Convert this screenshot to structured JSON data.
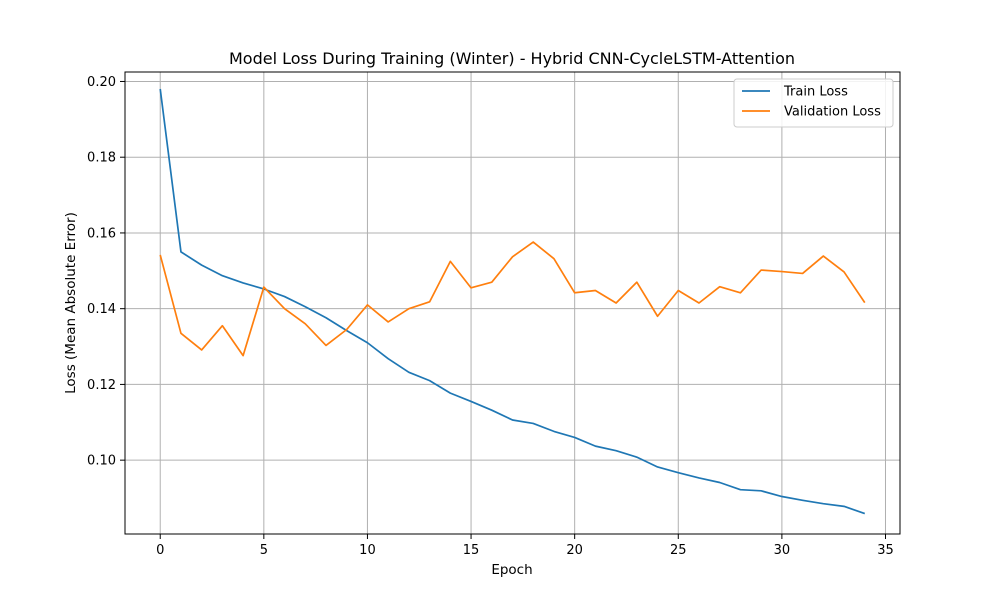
{
  "chart_data": {
    "type": "line",
    "title": "Model Loss During Training (Winter) - Hybrid CNN-CycleLSTM-Attention",
    "xlabel": "Epoch",
    "ylabel": "Loss (Mean Absolute Error)",
    "xlim": [
      -1.7,
      35.7
    ],
    "ylim": [
      0.0805,
      0.2025
    ],
    "xticks": [
      0,
      5,
      10,
      15,
      20,
      25,
      30,
      35
    ],
    "yticks": [
      0.1,
      0.12,
      0.14,
      0.16,
      0.18,
      0.2
    ],
    "ytick_labels": [
      "0.10",
      "0.12",
      "0.14",
      "0.16",
      "0.18",
      "0.20"
    ],
    "grid": true,
    "legend_position": "top-right",
    "x": [
      0,
      1,
      2,
      3,
      4,
      5,
      6,
      7,
      8,
      9,
      10,
      11,
      12,
      13,
      14,
      15,
      16,
      17,
      18,
      19,
      20,
      21,
      22,
      23,
      24,
      25,
      26,
      27,
      28,
      29,
      30,
      31,
      32,
      33,
      34
    ],
    "series": [
      {
        "name": "Train Loss",
        "color": "#1f77b4",
        "values": [
          0.198,
          0.155,
          0.1515,
          0.1487,
          0.1468,
          0.1452,
          0.1432,
          0.1405,
          0.1376,
          0.1342,
          0.131,
          0.1268,
          0.1232,
          0.121,
          0.1177,
          0.1155,
          0.1132,
          0.1106,
          0.1097,
          0.1076,
          0.106,
          0.1037,
          0.1025,
          0.1008,
          0.0982,
          0.0967,
          0.0953,
          0.0941,
          0.0922,
          0.0919,
          0.0904,
          0.0894,
          0.0885,
          0.0878,
          0.0859
        ]
      },
      {
        "name": "Validation Loss",
        "color": "#ff7f0e",
        "values": [
          0.1542,
          0.1335,
          0.1291,
          0.1355,
          0.1276,
          0.1457,
          0.14,
          0.136,
          0.1303,
          0.1345,
          0.141,
          0.1365,
          0.14,
          0.1418,
          0.1525,
          0.1455,
          0.147,
          0.1537,
          0.1576,
          0.1532,
          0.1442,
          0.1448,
          0.1415,
          0.147,
          0.138,
          0.1448,
          0.1415,
          0.1458,
          0.1442,
          0.1502,
          0.1498,
          0.1493,
          0.1539,
          0.1497,
          0.1416
        ]
      }
    ]
  }
}
